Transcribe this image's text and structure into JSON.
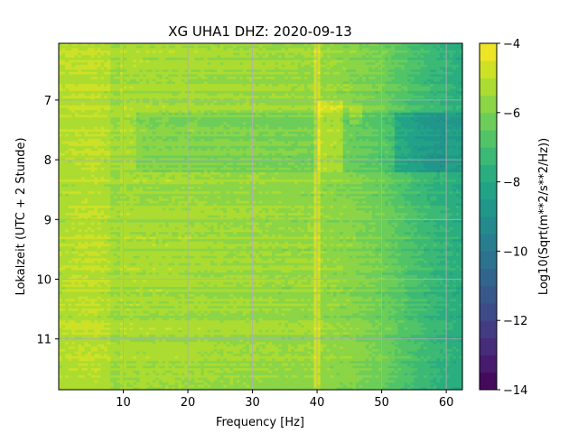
{
  "chart_data": {
    "type": "heatmap",
    "title": "XG UHA1  DHZ: 2020-09-13",
    "xlabel": "Frequency [Hz]",
    "ylabel": "Lokalzeit (UTC + 2 Stunde)",
    "xlim": [
      0,
      62.5
    ],
    "ylim": [
      11.85,
      6.05
    ],
    "y_inverted": true,
    "grid": true,
    "x_ticks": [
      10,
      20,
      30,
      40,
      50,
      60
    ],
    "y_ticks": [
      7,
      8,
      9,
      10,
      11
    ],
    "colorbar": {
      "label": "Log10(Sqrt(m**2/s**2/Hz))",
      "range": [
        -14,
        -4
      ],
      "ticks": [
        -14,
        -12,
        -10,
        -8,
        -6,
        -4
      ],
      "colormap": "viridis"
    },
    "description_values": {
      "freq_hz": [
        0,
        5,
        10,
        15,
        20,
        25,
        30,
        35,
        40,
        45,
        50,
        55,
        60,
        62.5
      ],
      "level_typical": [
        -5.2,
        -5.0,
        -5.3,
        -5.4,
        -5.4,
        -5.5,
        -5.5,
        -5.6,
        -5.6,
        -5.8,
        -6.2,
        -7.0,
        -7.6,
        -7.8
      ],
      "time_hours": [
        6.05,
        7.0,
        7.25,
        8.0,
        8.2,
        9.0,
        10.0,
        11.0,
        11.85
      ]
    }
  }
}
